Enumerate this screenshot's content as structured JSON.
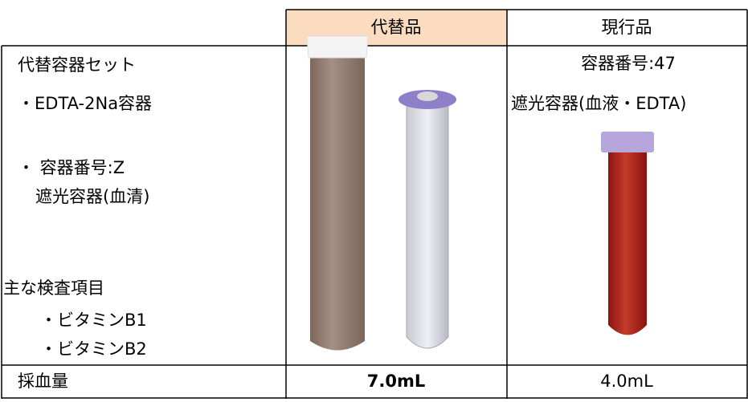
{
  "table": {
    "header": [
      "代替品",
      "現行品"
    ],
    "cells": {
      "col1": [
        "代替容器セット",
        "・EDTA-2Na容器",
        "・ 容器番号:Z",
        "遮光容器(血清)",
        "主な検査項目",
        "・ビタミンB1",
        "・ビタミンB2"
      ],
      "col3": [
        "容器番号:47",
        "遮光容器(血液・EDTA)"
      ]
    },
    "footer": [
      "採血量",
      "7.0mL",
      "4.0mL"
    ]
  }
}
